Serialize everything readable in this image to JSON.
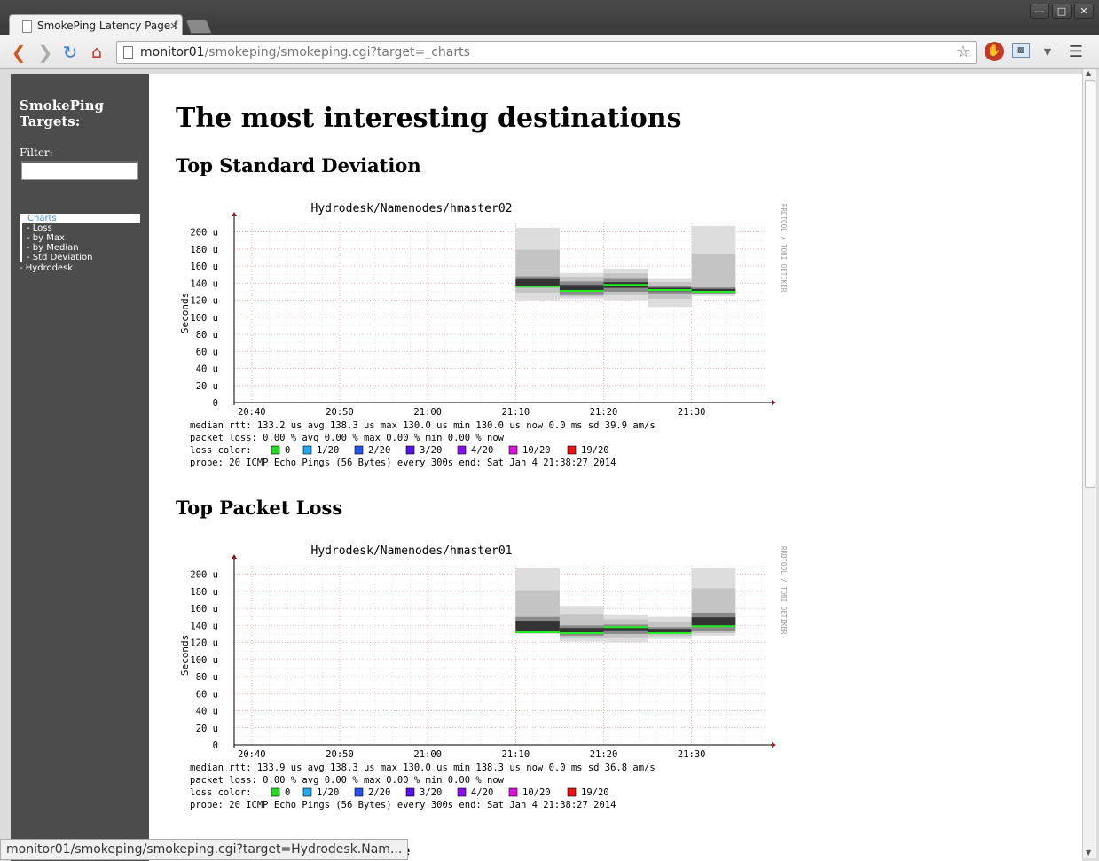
{
  "browser": {
    "tab_title": "SmokePing Latency Page f",
    "tab_close": "×",
    "url_host": "monitor01",
    "url_path": "/smokeping/smokeping.cgi?target=_charts",
    "status_url": "monitor01/smokeping/smokeping.cgi?target=Hydrodesk.Nam..."
  },
  "sidebar": {
    "heading": "SmokePing Targets:",
    "filter_label": "Filter:",
    "filter_value": "",
    "menu": [
      {
        "label": "Charts"
      },
      {
        "label": "- Loss"
      },
      {
        "label": "- by Max"
      },
      {
        "label": "- by Median"
      },
      {
        "label": "- Std Deviation"
      },
      {
        "label": "- Hydrodesk"
      }
    ]
  },
  "main": {
    "title": "The most interesting destinations",
    "sections": [
      {
        "heading": "Top Standard Deviation"
      },
      {
        "heading": "Top Packet Loss"
      },
      {
        "heading": "ne"
      }
    ]
  },
  "chart_data": [
    {
      "type": "area",
      "title": "Hydrodesk/Namenodes/hmaster02",
      "ylabel": "Seconds",
      "side_label": "RRDTOOL / TOBI OETIKER",
      "y_ticks": [
        "0",
        "20 u",
        "40 u",
        "60 u",
        "80 u",
        "100 u",
        "120 u",
        "140 u",
        "160 u",
        "180 u",
        "200 u"
      ],
      "x_ticks": [
        "20:40",
        "20:50",
        "21:00",
        "21:10",
        "21:20",
        "21:30"
      ],
      "ylim": [
        0,
        210
      ],
      "bins": [
        {
          "x": "21:10",
          "min": 120,
          "max": 205,
          "q1": 135,
          "q3": 148,
          "median": 136
        },
        {
          "x": "21:15",
          "min": 122,
          "max": 152,
          "q1": 126,
          "q3": 142,
          "median": 131
        },
        {
          "x": "21:20",
          "min": 120,
          "max": 157,
          "q1": 130,
          "q3": 145,
          "median": 138
        },
        {
          "x": "21:25",
          "min": 112,
          "max": 145,
          "q1": 128,
          "q3": 137,
          "median": 132
        },
        {
          "x": "21:30",
          "min": 125,
          "max": 207,
          "q1": 128,
          "q3": 135,
          "median": 130
        }
      ],
      "legend": {
        "median_rtt": "median rtt:  133.2 us avg  138.3 us max  130.0 us min  130.0 us now   0.0 ms sd   39.9   am/s",
        "packet_loss": "packet loss: 0.00 % avg   0.00 % max   0.00 % min   0.00 % now",
        "loss_color_label": "loss color:",
        "loss_colors": [
          {
            "label": "0",
            "color": "#22dd22"
          },
          {
            "label": "1/20",
            "color": "#22aaee"
          },
          {
            "label": "2/20",
            "color": "#2255ee"
          },
          {
            "label": "3/20",
            "color": "#5511ee"
          },
          {
            "label": "4/20",
            "color": "#8811ee"
          },
          {
            "label": "10/20",
            "color": "#dd11dd"
          },
          {
            "label": "19/20",
            "color": "#ee1111"
          }
        ],
        "probe": "probe:       20 ICMP Echo Pings (56 Bytes) every 300s            end: Sat Jan  4 21:38:27 2014"
      }
    },
    {
      "type": "area",
      "title": "Hydrodesk/Namenodes/hmaster01",
      "ylabel": "Seconds",
      "side_label": "RRDTOOL / TOBI OETIKER",
      "y_ticks": [
        "0",
        "20 u",
        "40 u",
        "60 u",
        "80 u",
        "100 u",
        "120 u",
        "140 u",
        "160 u",
        "180 u",
        "200 u"
      ],
      "x_ticks": [
        "20:40",
        "20:50",
        "21:00",
        "21:10",
        "21:20",
        "21:30"
      ],
      "ylim": [
        0,
        210
      ],
      "bins": [
        {
          "x": "21:10",
          "min": 130,
          "max": 207,
          "q1": 132,
          "q3": 150,
          "median": 132
        },
        {
          "x": "21:15",
          "min": 121,
          "max": 163,
          "q1": 128,
          "q3": 140,
          "median": 131
        },
        {
          "x": "21:20",
          "min": 120,
          "max": 152,
          "q1": 130,
          "q3": 141,
          "median": 138
        },
        {
          "x": "21:25",
          "min": 124,
          "max": 150,
          "q1": 130,
          "q3": 138,
          "median": 131
        },
        {
          "x": "21:30",
          "min": 128,
          "max": 207,
          "q1": 133,
          "q3": 155,
          "median": 139
        }
      ],
      "legend": {
        "median_rtt": "median rtt:  133.9 us avg  138.3 us max  130.0 us min  138.3 us now   0.0 ms sd   36.8   am/s",
        "packet_loss": "packet loss: 0.00 % avg   0.00 % max   0.00 % min   0.00 % now",
        "loss_color_label": "loss color:",
        "loss_colors": [
          {
            "label": "0",
            "color": "#22dd22"
          },
          {
            "label": "1/20",
            "color": "#22aaee"
          },
          {
            "label": "2/20",
            "color": "#2255ee"
          },
          {
            "label": "3/20",
            "color": "#5511ee"
          },
          {
            "label": "4/20",
            "color": "#8811ee"
          },
          {
            "label": "10/20",
            "color": "#dd11dd"
          },
          {
            "label": "19/20",
            "color": "#ee1111"
          }
        ],
        "probe": "probe:       20 ICMP Echo Pings (56 Bytes) every 300s            end: Sat Jan  4 21:38:27 2014"
      }
    }
  ]
}
